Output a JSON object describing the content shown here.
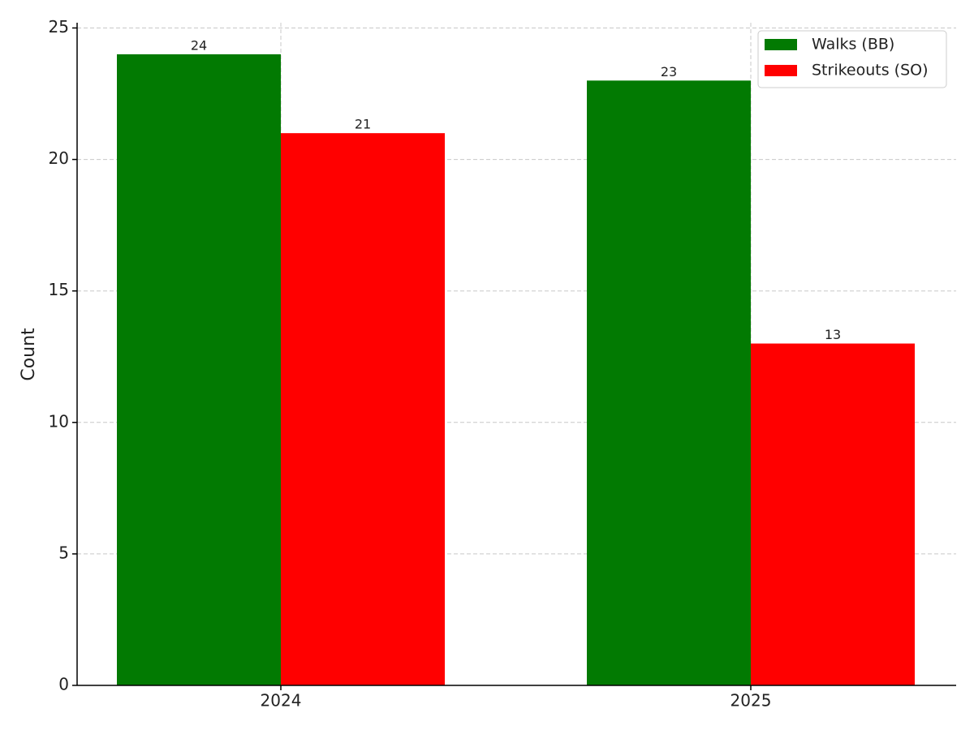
{
  "chart_data": {
    "type": "bar",
    "ylabel": "Count",
    "categories": [
      "2024",
      "2025"
    ],
    "series": [
      {
        "name": "Walks (BB)",
        "color": "#027a02",
        "values": [
          24,
          23
        ]
      },
      {
        "name": "Strikeouts (SO)",
        "color": "#ff0000",
        "values": [
          21,
          13
        ]
      }
    ],
    "ylim": [
      0,
      25.2
    ],
    "yticks": [
      0,
      5,
      10,
      15,
      20,
      25
    ],
    "grid": true,
    "legend": "upper right"
  }
}
